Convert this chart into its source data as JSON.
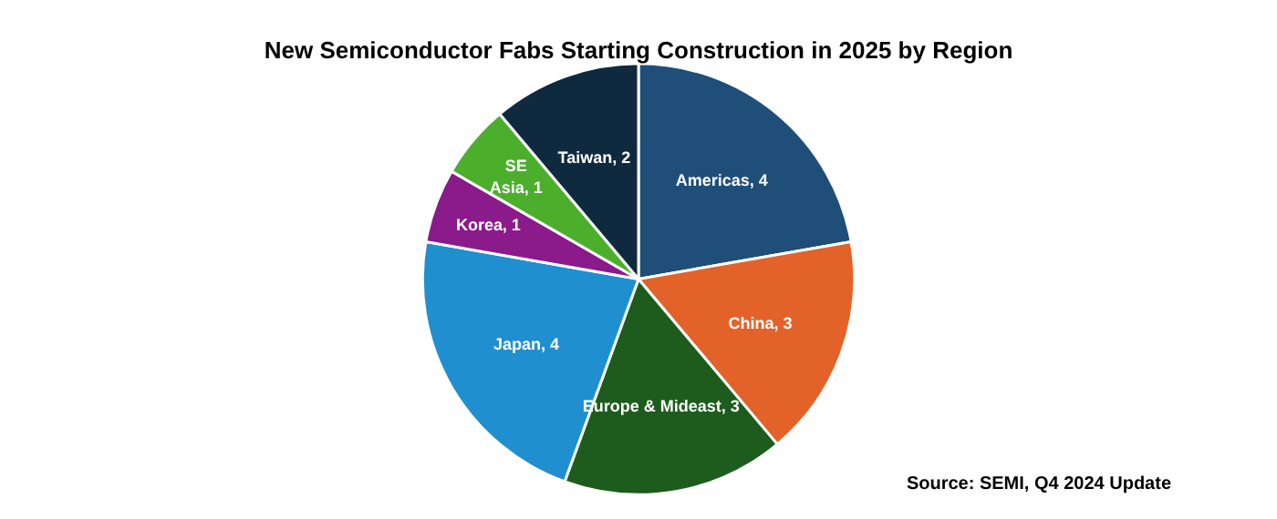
{
  "chart_data": {
    "type": "pie",
    "title": "New Semiconductor Fabs Starting Construction in 2025 by Region",
    "categories": [
      "Americas",
      "China",
      "Europe & Mideast",
      "Japan",
      "Korea",
      "SE Asia",
      "Taiwan"
    ],
    "values": [
      4,
      3,
      3,
      4,
      1,
      1,
      2
    ],
    "colors": [
      "#1f4e79",
      "#e2622a",
      "#1e5c1e",
      "#1f8fd0",
      "#8b1a8b",
      "#4caf2c",
      "#0f2a3f"
    ],
    "value_labels": [
      ", 4",
      ", 3",
      ", 3",
      ", 4",
      ", 1",
      ", 1",
      ", 2"
    ],
    "legend": false,
    "annotations": [
      "Source: SEMI, Q4 2024 Update"
    ]
  }
}
